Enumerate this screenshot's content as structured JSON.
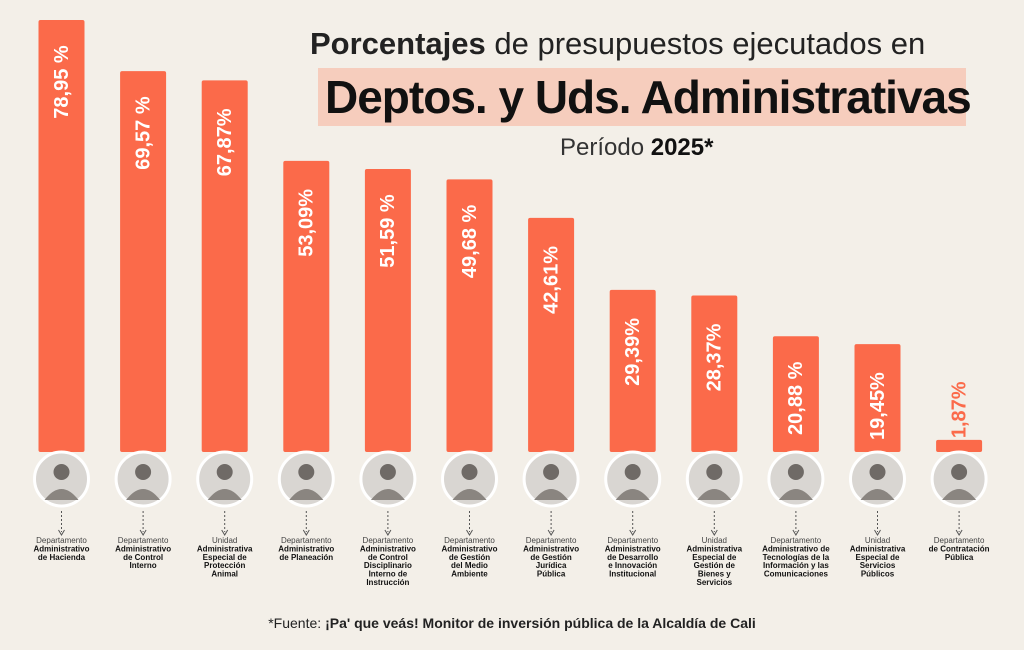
{
  "title": {
    "bold_word": "Porcentajes",
    "rest": " de presupuestos ejecutados en",
    "highlight": "Deptos. y Uds. Administrativas",
    "period_label": "Período ",
    "period_value": "2025*"
  },
  "footer": {
    "prefix": "*Fuente: ",
    "source": "¡Pa' que veás! Monitor de inversión pública de la Alcaldía de Cali"
  },
  "colors": {
    "bar": "#fb6a4a",
    "background": "#f3efe8",
    "highlight": "#f6cdbd"
  },
  "icons": {
    "avatar": "person-photo-icon",
    "connector": "dotted-arrow-icon"
  },
  "chart_data": {
    "type": "bar",
    "orientation": "vertical",
    "value_unit": "%",
    "ylim": [
      0,
      80
    ],
    "grid": false,
    "legend": "none",
    "categories": [
      {
        "type_line": "Departamento",
        "name_lines": [
          "Administrativo",
          "de Hacienda"
        ]
      },
      {
        "type_line": "Departamento",
        "name_lines": [
          "Administrativo",
          "de Control",
          "Interno"
        ]
      },
      {
        "type_line": "Unidad",
        "name_lines": [
          "Administrativa",
          "Especial de",
          "Protección",
          "Animal"
        ]
      },
      {
        "type_line": "Departamento",
        "name_lines": [
          "Administrativo",
          "de Planeación"
        ]
      },
      {
        "type_line": "Departamento",
        "name_lines": [
          "Administrativo",
          "de Control",
          "Disciplinario",
          "Interno de",
          "Instrucción"
        ]
      },
      {
        "type_line": "Departamento",
        "name_lines": [
          "Administrativo",
          "de Gestión",
          "del Medio",
          "Ambiente"
        ]
      },
      {
        "type_line": "Departamento",
        "name_lines": [
          "Administrativo",
          "de Gestión",
          "Jurídica",
          "Pública"
        ]
      },
      {
        "type_line": "Departamento",
        "name_lines": [
          "Administrativo",
          "de Desarrollo",
          "e Innovación",
          "Institucional"
        ]
      },
      {
        "type_line": "Unidad",
        "name_lines": [
          "Administrativa",
          "Especial de",
          "Gestión de",
          "Bienes y",
          "Servicios"
        ]
      },
      {
        "type_line": "Departamento",
        "name_lines": [
          "Administrativo de",
          "Tecnologías de la",
          "Información y las",
          "Comunicaciones"
        ]
      },
      {
        "type_line": "Unidad",
        "name_lines": [
          "Administrativa",
          "Especial de",
          "Servicios",
          "Públicos"
        ]
      },
      {
        "type_line": "Departamento",
        "name_lines": [
          "de Contratación",
          "Pública"
        ]
      }
    ],
    "values": [
      78.95,
      69.57,
      67.87,
      53.09,
      51.59,
      49.68,
      42.61,
      29.39,
      28.37,
      20.88,
      19.45,
      1.87
    ],
    "value_labels": [
      "78,95 %",
      "69,57 %",
      "67,87%",
      "53,09%",
      "51,59 %",
      "49,68 %",
      "42,61%",
      "29,39%",
      "28,37%",
      "20,88 %",
      "19,45%",
      "1,87%"
    ]
  }
}
